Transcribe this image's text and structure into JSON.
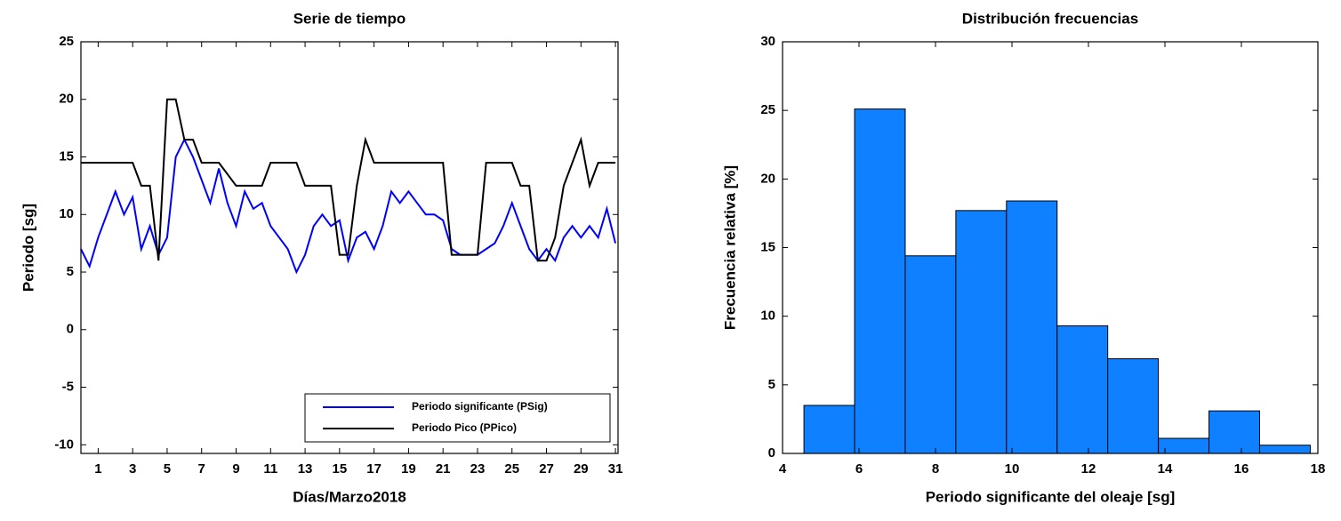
{
  "chart_data": [
    {
      "type": "line",
      "title": "Serie de tiempo",
      "xlabel": "Días/Marzo2018",
      "ylabel": "Periodo [sg]",
      "x": [
        0,
        0.5,
        1,
        1.5,
        2,
        2.5,
        3,
        3.5,
        4,
        4.5,
        5,
        5.5,
        6,
        6.5,
        7,
        7.5,
        8,
        8.5,
        9,
        9.5,
        10,
        10.5,
        11,
        11.5,
        12,
        12.5,
        13,
        13.5,
        14,
        14.5,
        15,
        15.5,
        16,
        16.5,
        17,
        17.5,
        18,
        18.5,
        19,
        19.5,
        20,
        20.5,
        21,
        21.5,
        22,
        22.5,
        23,
        23.5,
        24,
        24.5,
        25,
        25.5,
        26,
        26.5,
        27,
        27.5,
        28,
        28.5,
        29,
        29.5,
        30,
        30.5,
        31
      ],
      "series": [
        {
          "name": "Periodo significante (PSig)",
          "color": "#0000ff",
          "values": [
            7,
            5.5,
            8,
            10,
            12,
            10,
            11.5,
            7,
            9,
            6.5,
            8,
            15,
            16.5,
            15,
            13,
            11,
            14,
            11,
            9,
            12,
            10.5,
            11,
            9,
            8,
            7,
            5,
            6.5,
            9,
            10,
            9,
            9.5,
            6,
            8,
            8.5,
            7,
            9,
            12,
            11,
            12,
            11,
            10,
            10,
            9.5,
            7,
            6.5,
            6.5,
            6.5,
            7,
            7.5,
            9,
            11,
            9,
            7,
            6,
            7,
            6,
            8,
            9,
            8,
            9,
            8,
            10.5,
            7.5
          ]
        },
        {
          "name": "Periodo Pico (PPico)",
          "color": "#000000",
          "values": [
            14.5,
            14.5,
            14.5,
            14.5,
            14.5,
            14.5,
            14.5,
            12.5,
            12.5,
            6,
            20,
            20,
            16.5,
            16.5,
            14.5,
            14.5,
            14.5,
            13.5,
            12.5,
            12.5,
            12.5,
            12.5,
            14.5,
            14.5,
            14.5,
            14.5,
            12.5,
            12.5,
            12.5,
            12.5,
            6.5,
            6.5,
            12.5,
            16.5,
            14.5,
            14.5,
            14.5,
            14.5,
            14.5,
            14.5,
            14.5,
            14.5,
            14.5,
            6.5,
            6.5,
            6.5,
            6.5,
            14.5,
            14.5,
            14.5,
            14.5,
            12.5,
            12.5,
            6,
            6,
            8,
            12.5,
            14.5,
            16.5,
            12.5,
            14.5,
            14.5,
            14.5
          ]
        }
      ],
      "xlim": [
        0,
        31.15
      ],
      "xticks": [
        1,
        3,
        5,
        7,
        9,
        11,
        13,
        15,
        17,
        19,
        21,
        23,
        25,
        27,
        29,
        31
      ],
      "ylim": [
        -10.75,
        25
      ],
      "yticks": [
        -10,
        -5,
        0,
        5,
        10,
        15,
        20,
        25
      ],
      "legend": "lower right"
    },
    {
      "type": "histogram",
      "title": "Distribución frecuencias",
      "xlabel": "Periodo significante del oleaje [sg]",
      "ylabel": "Frecuencia relativa [%]",
      "bins": [
        4.56,
        5.884,
        7.208,
        8.532,
        9.856,
        11.18,
        12.504,
        13.828,
        15.152,
        16.476,
        17.8
      ],
      "values": [
        3.5,
        25.1,
        14.4,
        17.7,
        18.4,
        9.3,
        6.9,
        1.1,
        3.1,
        0.6
      ],
      "color": "#0f80ff",
      "xlim": [
        4,
        18
      ],
      "xticks": [
        4,
        6,
        8,
        10,
        12,
        14,
        16,
        18
      ],
      "ylim": [
        0,
        30
      ],
      "yticks": [
        0,
        5,
        10,
        15,
        20,
        25,
        30
      ]
    }
  ]
}
